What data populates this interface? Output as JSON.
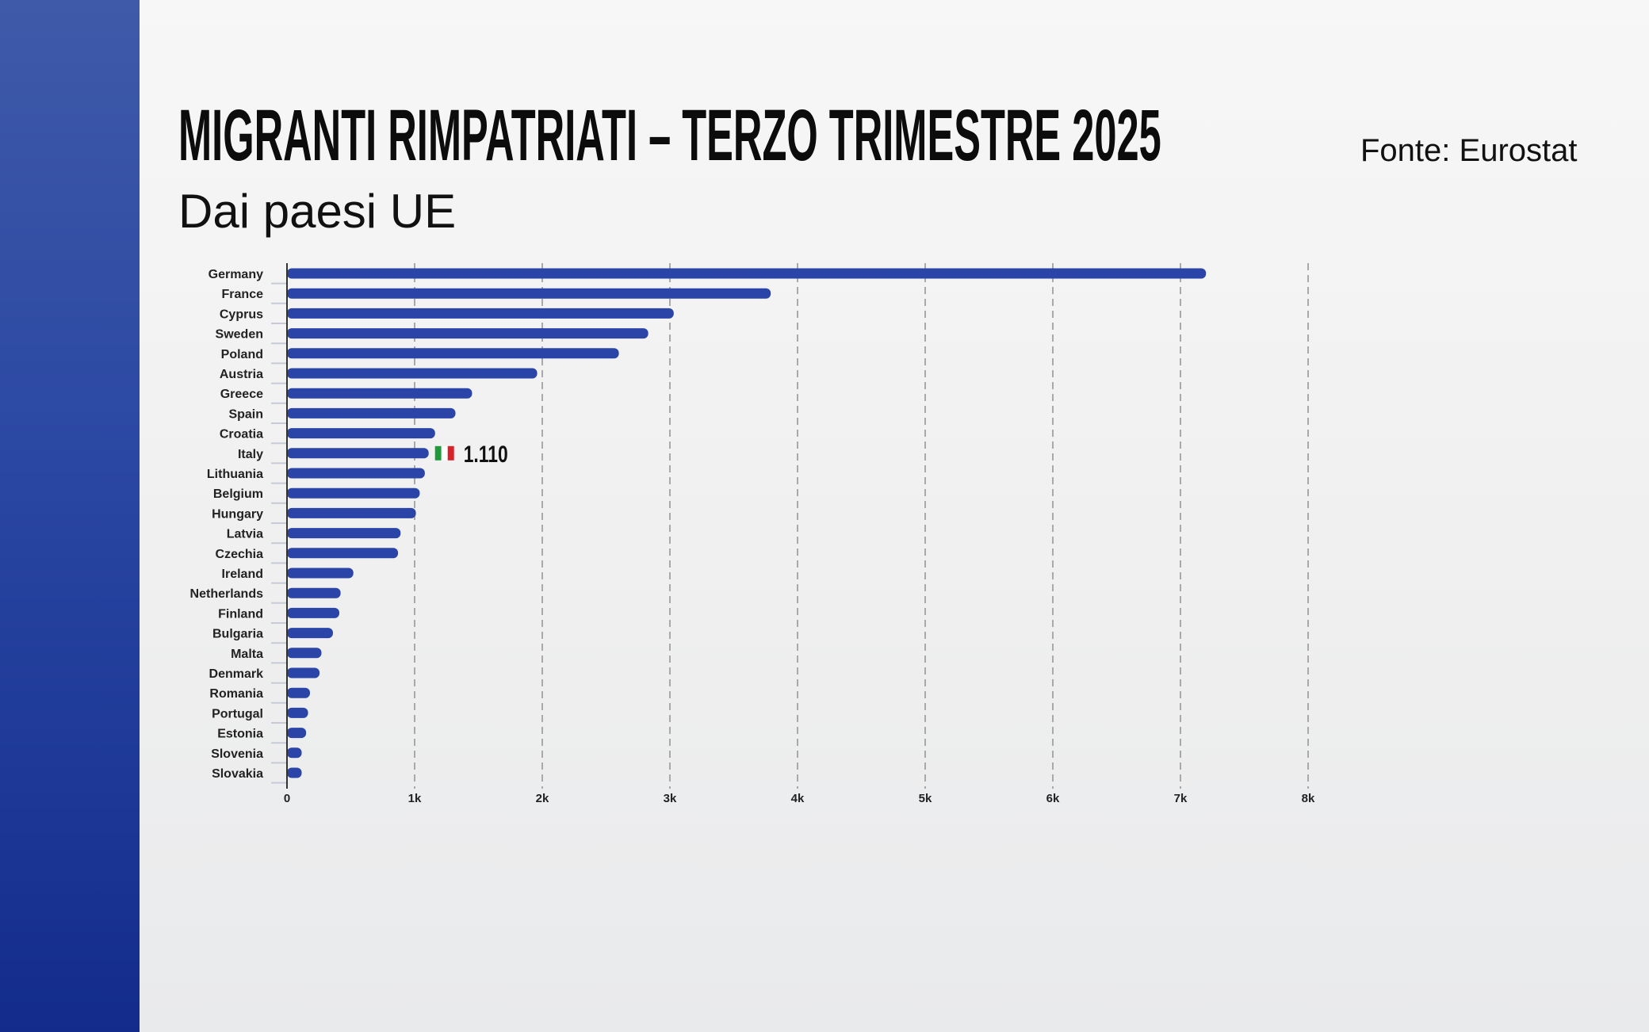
{
  "header": {
    "title": "MIGRANTI RIMPATRIATI – TERZO TRIMESTRE 2025",
    "subtitle": "Dai paesi UE",
    "source": "Fonte: Eurostat"
  },
  "chart_data": {
    "type": "bar",
    "orientation": "horizontal",
    "title": "MIGRANTI RIMPATRIATI – TERZO TRIMESTRE 2025",
    "subtitle": "Dai paesi UE",
    "categories": [
      "Germany",
      "France",
      "Cyprus",
      "Sweden",
      "Poland",
      "Austria",
      "Greece",
      "Spain",
      "Croatia",
      "Italy",
      "Lithuania",
      "Belgium",
      "Hungary",
      "Latvia",
      "Czechia",
      "Ireland",
      "Netherlands",
      "Finland",
      "Bulgaria",
      "Malta",
      "Denmark",
      "Romania",
      "Portugal",
      "Estonia",
      "Slovenia",
      "Slovakia"
    ],
    "values": [
      7200,
      3790,
      3030,
      2830,
      2600,
      1960,
      1450,
      1320,
      1160,
      1110,
      1080,
      1040,
      1010,
      890,
      870,
      520,
      420,
      410,
      360,
      270,
      255,
      180,
      165,
      150,
      115,
      115
    ],
    "xlim": [
      0,
      8000
    ],
    "xticks": [
      0,
      1000,
      2000,
      3000,
      4000,
      5000,
      6000,
      7000,
      8000
    ],
    "xtick_labels": [
      "0",
      "1k",
      "2k",
      "3k",
      "4k",
      "5k",
      "6k",
      "7k",
      "8k"
    ],
    "grid": "vertical dashed",
    "bar_color": "#2a44a8",
    "annotation": {
      "category": "Italy",
      "label": "1.110",
      "icon": "italy-flag-icon"
    }
  }
}
